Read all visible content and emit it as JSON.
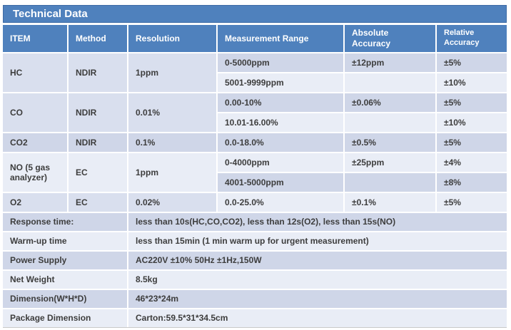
{
  "title": "Technical Data",
  "colors": {
    "accent_blue": "#4f81bd",
    "accent_blue_border": "#3d6ba5",
    "band_dark": "#cfd6e8",
    "band_mid": "#d9dfee",
    "band_light": "#e9edf6",
    "body_text": "#3d3d3d",
    "header_text": "#ffffff"
  },
  "header": {
    "item": "ITEM",
    "method": "Method",
    "resolution": "Resolution",
    "range": "Measurement Range",
    "absolute": "Absolute Accuracy",
    "relative": "Relative Accuracy"
  },
  "gases": [
    {
      "item": "HC",
      "method": "NDIR",
      "resolution": "1ppm",
      "rows": [
        {
          "range": "0-5000ppm",
          "absolute": "±12ppm",
          "relative": "±5%"
        },
        {
          "range": "5001-9999ppm",
          "absolute": "",
          "relative": "±10%"
        }
      ]
    },
    {
      "item": "CO",
      "method": "NDIR",
      "resolution": "0.01%",
      "rows": [
        {
          "range": "0.00-10%",
          "absolute": "±0.06%",
          "relative": "±5%"
        },
        {
          "range": "10.01-16.00%",
          "absolute": "",
          "relative": "±10%"
        }
      ]
    },
    {
      "item": "CO2",
      "method": "NDIR",
      "resolution": "0.1%",
      "rows": [
        {
          "range": "0.0-18.0%",
          "absolute": "±0.5%",
          "relative": "±5%"
        }
      ]
    },
    {
      "item": "NO (5 gas analyzer)",
      "method": "EC",
      "resolution": "1ppm",
      "rows": [
        {
          "range": "0-4000ppm",
          "absolute": "±25ppm",
          "relative": "±4%"
        },
        {
          "range": "4001-5000ppm",
          "absolute": "",
          "relative": "±8%"
        }
      ]
    },
    {
      "item": "O2",
      "method": "EC",
      "resolution": "0.02%",
      "rows": [
        {
          "range": "0.0-25.0%",
          "absolute": "±0.1%",
          "relative": "±5%"
        }
      ]
    }
  ],
  "specs": [
    {
      "label": "Response time:",
      "value": "less than 10s(HC,CO,CO2),  less than 12s(O2), less than 15s(NO)"
    },
    {
      "label": "Warm-up time",
      "value": "less than 15min  (1 min  warm up for urgent measurement)"
    },
    {
      "label": "Power Supply",
      "value": "AC220V ±10% 50Hz ±1Hz,150W"
    },
    {
      "label": "Net Weight",
      "value": "8.5kg"
    },
    {
      "label": "Dimension(W*H*D)",
      "value": "46*23*24m"
    },
    {
      "label": "Package Dimension",
      "value": "Carton:59.5*31*34.5cm"
    }
  ]
}
